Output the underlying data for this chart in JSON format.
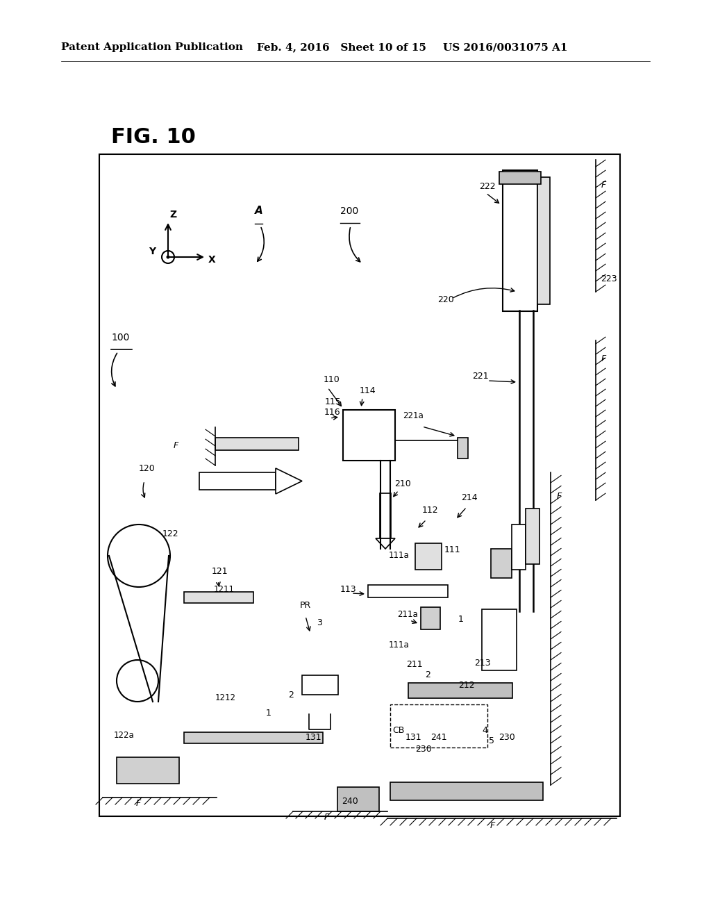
{
  "bg_color": "#ffffff",
  "line_color": "#000000",
  "header_left": "Patent Application Publication",
  "header_mid": "Feb. 4, 2016   Sheet 10 of 15",
  "header_right": "US 2016/0031075 A1",
  "fig_label": "FIG. 10",
  "label_fontsize": 9.0,
  "header_fontsize": 11,
  "fig_fontsize": 22
}
